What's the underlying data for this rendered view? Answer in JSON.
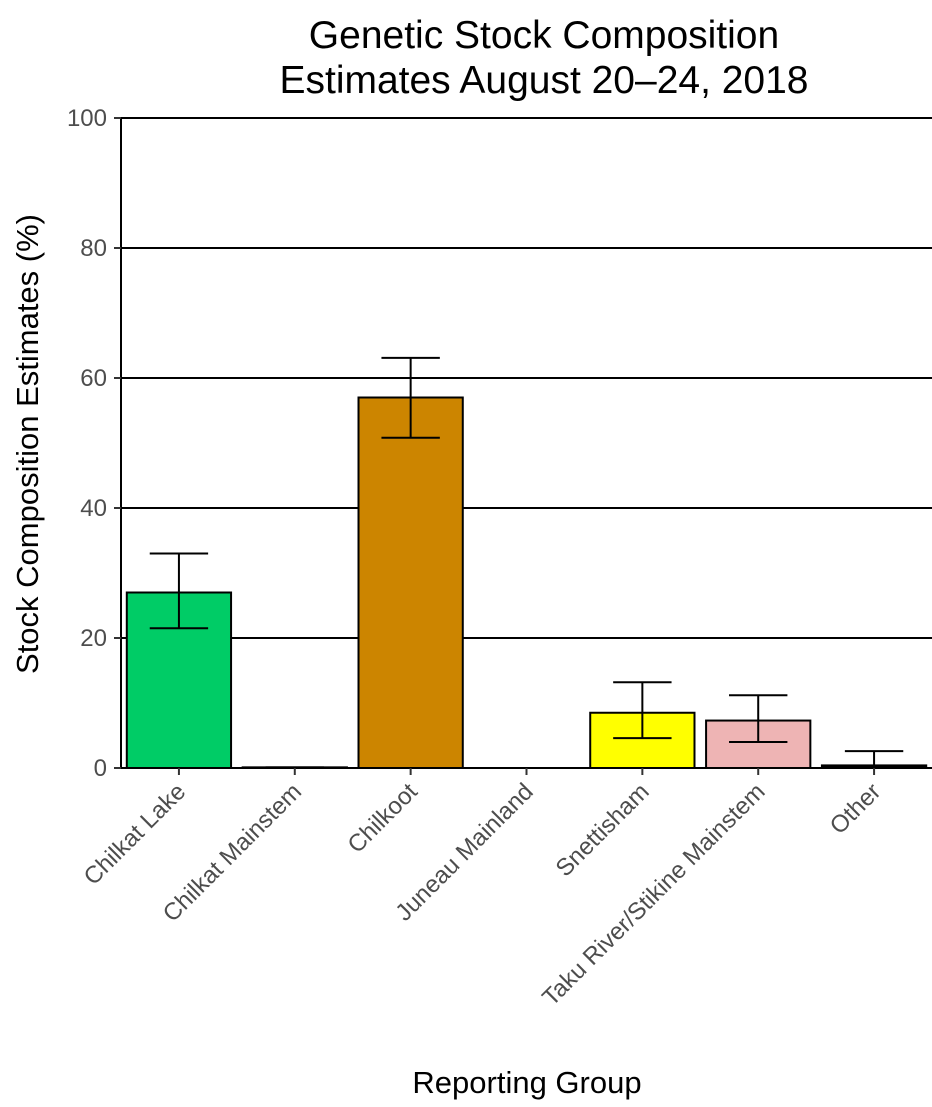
{
  "chart_data": {
    "type": "bar",
    "title_lines": [
      "Genetic Stock Composition",
      "Estimates August 20–24, 2018"
    ],
    "xlabel": "Reporting Group",
    "ylabel": "Stock Composition Estimates (%)",
    "ylim": [
      0,
      100
    ],
    "yticks": [
      0,
      20,
      40,
      60,
      80,
      100
    ],
    "grid": "horizontal major lines",
    "categories": [
      "Chilkat Lake",
      "Chilkat Mainstem",
      "Chilkoot",
      "Juneau Mainland",
      "Snettisham",
      "Taku River/Stikine Mainstem",
      "Other"
    ],
    "values": [
      27.0,
      0.1,
      57.0,
      0.0,
      8.5,
      7.3,
      0.4
    ],
    "error_low": [
      21.5,
      0.0,
      50.8,
      0.0,
      4.6,
      4.0,
      0.0
    ],
    "error_high": [
      33.0,
      0.1,
      63.1,
      0.0,
      13.2,
      11.2,
      2.6
    ],
    "colors": [
      "#00CC66",
      "#00CC66",
      "#CC8500",
      "#CC8500",
      "#FFFF00",
      "#EEB4B4",
      "#000000"
    ]
  }
}
